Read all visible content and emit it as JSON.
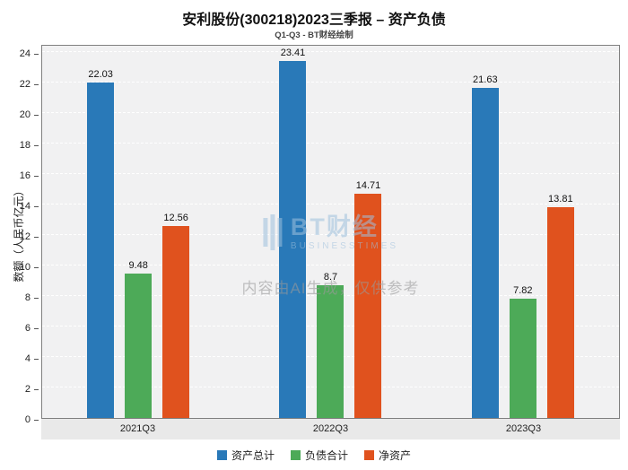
{
  "chart_data": {
    "type": "bar",
    "title": "安利股份(300218)2023三季报 – 资产负债",
    "subtitle": "Q1-Q3 - BT财经绘制",
    "categories": [
      "2021Q3",
      "2022Q3",
      "2023Q3"
    ],
    "series": [
      {
        "name": "资产总计",
        "color": "#2979b8",
        "values": [
          22.03,
          23.41,
          21.63
        ]
      },
      {
        "name": "负债合计",
        "color": "#4daa58",
        "values": [
          9.48,
          8.7,
          7.82
        ]
      },
      {
        "name": "净资产",
        "color": "#e0521e",
        "values": [
          12.56,
          14.71,
          13.81
        ]
      }
    ],
    "xlabel": "",
    "ylabel": "数额（人民币亿元）",
    "ylim": [
      0,
      24
    ],
    "yticks": [
      0,
      2,
      4,
      6,
      8,
      10,
      12,
      14,
      16,
      18,
      20,
      22,
      24
    ],
    "grid": true,
    "grid_style": "dashed-white",
    "legend_position": "bottom"
  },
  "watermark": {
    "logo_text": "BT财经",
    "logo_sub": "BUSINESSTIMES",
    "disclaimer": "内容由AI生成，仅供参考"
  }
}
